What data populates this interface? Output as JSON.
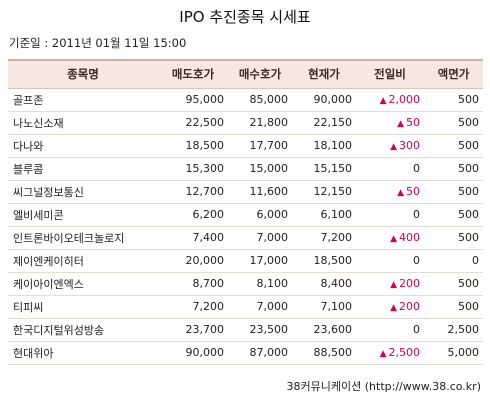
{
  "title": "IPO 추진종목 시세표",
  "base_date": "기준일 : 2011년 01월 11일 15:00",
  "columns": [
    "종목명",
    "매도호가",
    "매수호가",
    "현재가",
    "전일비",
    "액면가"
  ],
  "rows": [
    {
      "name": "골프존",
      "ask": "95,000",
      "bid": "85,000",
      "price": "90,000",
      "change": "2,000",
      "up": true,
      "par": "500"
    },
    {
      "name": "나노신소재",
      "ask": "22,500",
      "bid": "21,800",
      "price": "22,150",
      "change": "50",
      "up": true,
      "par": "500"
    },
    {
      "name": "다나와",
      "ask": "18,500",
      "bid": "17,700",
      "price": "18,100",
      "change": "300",
      "up": true,
      "par": "500"
    },
    {
      "name": "블루콤",
      "ask": "15,300",
      "bid": "15,000",
      "price": "15,150",
      "change": "0",
      "up": false,
      "par": "500"
    },
    {
      "name": "씨그널정보통신",
      "ask": "12,700",
      "bid": "11,600",
      "price": "12,150",
      "change": "50",
      "up": true,
      "par": "500"
    },
    {
      "name": "엘비세미콘",
      "ask": "6,200",
      "bid": "6,000",
      "price": "6,100",
      "change": "0",
      "up": false,
      "par": "500"
    },
    {
      "name": "인트론바이오테크놀로지",
      "ask": "7,400",
      "bid": "7,000",
      "price": "7,200",
      "change": "400",
      "up": true,
      "par": "500"
    },
    {
      "name": "제이엔케이히터",
      "ask": "20,000",
      "bid": "17,000",
      "price": "18,500",
      "change": "0",
      "up": false,
      "par": "0"
    },
    {
      "name": "케이아이엔엑스",
      "ask": "8,700",
      "bid": "8,100",
      "price": "8,400",
      "change": "200",
      "up": true,
      "par": "500"
    },
    {
      "name": "티피씨",
      "ask": "7,200",
      "bid": "7,000",
      "price": "7,100",
      "change": "200",
      "up": true,
      "par": "500"
    },
    {
      "name": "한국디지털위성방송",
      "ask": "23,700",
      "bid": "23,500",
      "price": "23,600",
      "change": "0",
      "up": false,
      "par": "2,500"
    },
    {
      "name": "현대위아",
      "ask": "90,000",
      "bid": "87,000",
      "price": "88,500",
      "change": "2,500",
      "up": true,
      "par": "5,000"
    }
  ],
  "up_symbol": "▲",
  "colors": {
    "up": "#d6005a",
    "header_bg": "#f6e7e1"
  },
  "footer": "38커뮤니케이션 (http://www.38.co.kr)"
}
